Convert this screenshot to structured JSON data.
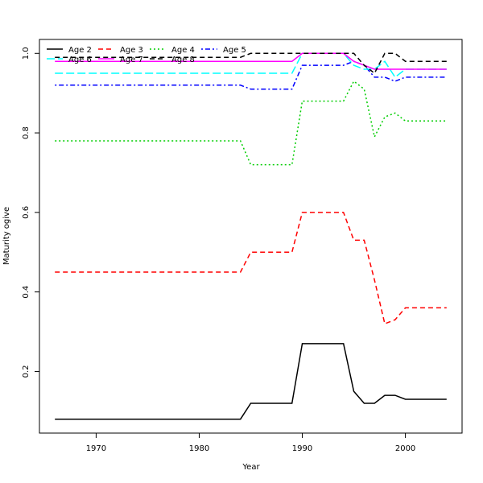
{
  "chart_data": {
    "type": "line",
    "xlabel": "Year",
    "ylabel": "Maturity ogive",
    "xlim": [
      1964.5,
      2005.5
    ],
    "ylim": [
      0.045,
      1.035
    ],
    "xticks": [
      1970,
      1980,
      1990,
      2000
    ],
    "xtick_labels": [
      "1970",
      "1980",
      "1990",
      "2000"
    ],
    "yticks": [
      0.2,
      0.4,
      0.6,
      0.8,
      1.0
    ],
    "ytick_labels": [
      "0.2",
      "0.4",
      "0.6",
      "0.8",
      "1.0"
    ],
    "grid": false,
    "legend_position": "top-left",
    "x": [
      1966,
      1967,
      1968,
      1969,
      1970,
      1971,
      1972,
      1973,
      1974,
      1975,
      1976,
      1977,
      1978,
      1979,
      1980,
      1981,
      1982,
      1983,
      1984,
      1985,
      1986,
      1987,
      1988,
      1989,
      1990,
      1991,
      1992,
      1993,
      1994,
      1995,
      1996,
      1997,
      1998,
      1999,
      2000,
      2001,
      2002,
      2003,
      2004
    ],
    "series": [
      {
        "name": "Age 2",
        "color": "#000000",
        "dash": "solid",
        "values": [
          0.08,
          0.08,
          0.08,
          0.08,
          0.08,
          0.08,
          0.08,
          0.08,
          0.08,
          0.08,
          0.08,
          0.08,
          0.08,
          0.08,
          0.08,
          0.08,
          0.08,
          0.08,
          0.08,
          0.12,
          0.12,
          0.12,
          0.12,
          0.12,
          0.27,
          0.27,
          0.27,
          0.27,
          0.27,
          0.15,
          0.12,
          0.12,
          0.14,
          0.14,
          0.13,
          0.13,
          0.13,
          0.13,
          0.13
        ]
      },
      {
        "name": "Age 3",
        "color": "#ff0000",
        "dash": "dashed",
        "values": [
          0.45,
          0.45,
          0.45,
          0.45,
          0.45,
          0.45,
          0.45,
          0.45,
          0.45,
          0.45,
          0.45,
          0.45,
          0.45,
          0.45,
          0.45,
          0.45,
          0.45,
          0.45,
          0.45,
          0.5,
          0.5,
          0.5,
          0.5,
          0.5,
          0.6,
          0.6,
          0.6,
          0.6,
          0.6,
          0.53,
          0.53,
          0.43,
          0.32,
          0.33,
          0.36,
          0.36,
          0.36,
          0.36,
          0.36
        ]
      },
      {
        "name": "Age 4",
        "color": "#00cd00",
        "dash": "dotted",
        "values": [
          0.78,
          0.78,
          0.78,
          0.78,
          0.78,
          0.78,
          0.78,
          0.78,
          0.78,
          0.78,
          0.78,
          0.78,
          0.78,
          0.78,
          0.78,
          0.78,
          0.78,
          0.78,
          0.78,
          0.72,
          0.72,
          0.72,
          0.72,
          0.72,
          0.88,
          0.88,
          0.88,
          0.88,
          0.88,
          0.93,
          0.91,
          0.79,
          0.84,
          0.85,
          0.83,
          0.83,
          0.83,
          0.83,
          0.83
        ]
      },
      {
        "name": "Age 5",
        "color": "#0000ff",
        "dash": "dotdash",
        "values": [
          0.92,
          0.92,
          0.92,
          0.92,
          0.92,
          0.92,
          0.92,
          0.92,
          0.92,
          0.92,
          0.92,
          0.92,
          0.92,
          0.92,
          0.92,
          0.92,
          0.92,
          0.92,
          0.92,
          0.91,
          0.91,
          0.91,
          0.91,
          0.91,
          0.97,
          0.97,
          0.97,
          0.97,
          0.97,
          0.98,
          0.97,
          0.94,
          0.94,
          0.93,
          0.94,
          0.94,
          0.94,
          0.94,
          0.94
        ]
      },
      {
        "name": "Age 6",
        "color": "#00ffff",
        "dash": "longdash",
        "values": [
          0.95,
          0.95,
          0.95,
          0.95,
          0.95,
          0.95,
          0.95,
          0.95,
          0.95,
          0.95,
          0.95,
          0.95,
          0.95,
          0.95,
          0.95,
          0.95,
          0.95,
          0.95,
          0.95,
          0.95,
          0.95,
          0.95,
          0.95,
          0.95,
          1.0,
          1.0,
          1.0,
          1.0,
          1.0,
          0.97,
          0.96,
          0.96,
          0.98,
          0.94,
          0.96,
          0.96,
          0.96,
          0.96,
          0.96
        ]
      },
      {
        "name": "Age 7",
        "color": "#ff00ff",
        "dash": "solid",
        "values": [
          0.98,
          0.98,
          0.98,
          0.98,
          0.98,
          0.98,
          0.98,
          0.98,
          0.98,
          0.98,
          0.98,
          0.98,
          0.98,
          0.98,
          0.98,
          0.98,
          0.98,
          0.98,
          0.98,
          0.98,
          0.98,
          0.98,
          0.98,
          0.98,
          1.0,
          1.0,
          1.0,
          1.0,
          1.0,
          0.98,
          0.97,
          0.96,
          0.96,
          0.96,
          0.96,
          0.96,
          0.96,
          0.96,
          0.96
        ]
      },
      {
        "name": "Age 8",
        "color": "#000000",
        "dash": "dashed",
        "values": [
          0.99,
          0.99,
          0.99,
          0.99,
          0.99,
          0.99,
          0.99,
          0.99,
          0.99,
          0.99,
          0.99,
          0.99,
          0.99,
          0.99,
          0.99,
          0.99,
          0.99,
          0.99,
          0.99,
          1.0,
          1.0,
          1.0,
          1.0,
          1.0,
          1.0,
          1.0,
          1.0,
          1.0,
          1.0,
          1.0,
          0.97,
          0.95,
          1.0,
          1.0,
          0.98,
          0.98,
          0.98,
          0.98,
          0.98
        ]
      }
    ]
  }
}
